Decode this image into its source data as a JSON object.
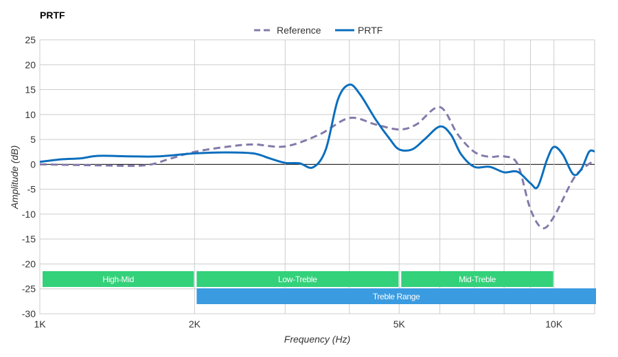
{
  "chart_data": {
    "type": "line",
    "title": "PRTF",
    "xlabel": "Frequency (Hz)",
    "ylabel": "Amplitude (dB)",
    "x_scale": "log",
    "xlim": [
      1000,
      12000
    ],
    "ylim": [
      -30,
      25
    ],
    "grid": true,
    "legend_position": "top",
    "x_ticks": [
      {
        "value": 1000,
        "label": "1K"
      },
      {
        "value": 2000,
        "label": "2K"
      },
      {
        "value": 5000,
        "label": "5K"
      },
      {
        "value": 10000,
        "label": "10K"
      }
    ],
    "x_minor_gridlines": [
      3000,
      4000,
      6000,
      7000,
      8000,
      9000
    ],
    "y_ticks": [
      25,
      20,
      15,
      10,
      5,
      0,
      -5,
      -10,
      -15,
      -20,
      -25,
      -30
    ],
    "series": [
      {
        "name": "Reference",
        "color": "#8479aa",
        "style": "dashed",
        "x": [
          1000,
          1300,
          1600,
          1800,
          2000,
          2300,
          2600,
          3000,
          3500,
          4000,
          4500,
          5000,
          5400,
          6000,
          6500,
          7000,
          7500,
          8000,
          8500,
          9000,
          9500,
          10000,
          10900,
          11500,
          12000
        ],
        "y": [
          0,
          -0.2,
          -0.2,
          1.2,
          2.5,
          3.5,
          4,
          3.6,
          6,
          9.3,
          8,
          7,
          8,
          11.5,
          6,
          2.5,
          1.5,
          1.6,
          0,
          -9,
          -12.8,
          -10.5,
          -3,
          -0.5,
          0.8
        ]
      },
      {
        "name": "PRTF",
        "color": "#0a6ebd",
        "style": "solid",
        "x": [
          1000,
          1100,
          1200,
          1300,
          1500,
          1700,
          2000,
          2300,
          2600,
          2800,
          3000,
          3200,
          3400,
          3600,
          3800,
          4000,
          4200,
          4500,
          4800,
          5000,
          5300,
          5600,
          6000,
          6300,
          6600,
          7000,
          7500,
          8000,
          8500,
          9000,
          9300,
          9700,
          10000,
          10400,
          10900,
          11300,
          11700,
          12000
        ],
        "y": [
          0.5,
          1,
          1.2,
          1.7,
          1.6,
          1.6,
          2.2,
          2.4,
          2.2,
          1.2,
          0.3,
          0.2,
          -0.6,
          3,
          13,
          16,
          14,
          9,
          5,
          3,
          3,
          5,
          7.6,
          6,
          2,
          -0.5,
          -0.5,
          -1.6,
          -1.5,
          -3.8,
          -4.5,
          1,
          3.5,
          2,
          -2,
          -1,
          2.5,
          2.6
        ]
      }
    ],
    "bands": [
      {
        "label": "High-Mid",
        "from": 1000,
        "to": 2000,
        "row": 1,
        "color": "#33d17a"
      },
      {
        "label": "Low-Treble",
        "from": 2000,
        "to": 5000,
        "row": 1,
        "color": "#33d17a"
      },
      {
        "label": "Mid-Treble",
        "from": 5000,
        "to": 10000,
        "row": 1,
        "color": "#33d17a"
      },
      {
        "label": "Treble Range",
        "from": 2000,
        "to": 12000,
        "row": 2,
        "color": "#3a9be0"
      }
    ]
  }
}
